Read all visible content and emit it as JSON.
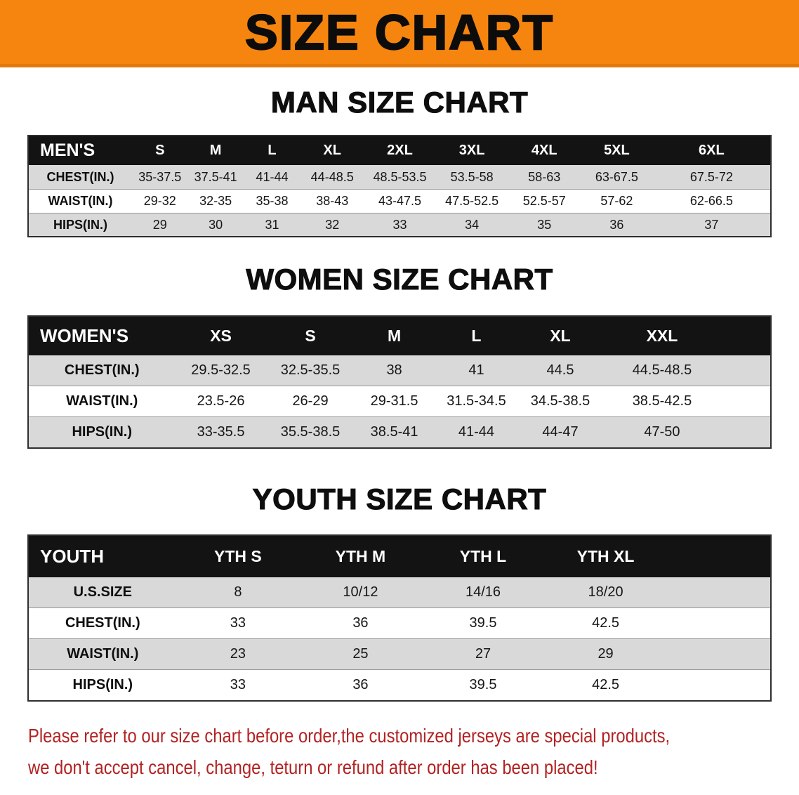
{
  "banner": {
    "title": "SIZE CHART"
  },
  "sections": [
    {
      "heading": "MAN SIZE CHART",
      "table": {
        "header": [
          "MEN'S",
          "S",
          "M",
          "L",
          "XL",
          "2XL",
          "3XL",
          "4XL",
          "5XL",
          "6XL"
        ],
        "rows": [
          [
            "CHEST(IN.)",
            "35-37.5",
            "37.5-41",
            "41-44",
            "44-48.5",
            "48.5-53.5",
            "53.5-58",
            "58-63",
            "63-67.5",
            "67.5-72"
          ],
          [
            "WAIST(IN.)",
            "29-32",
            "32-35",
            "35-38",
            "38-43",
            "43-47.5",
            "47.5-52.5",
            "52.5-57",
            "57-62",
            "62-66.5"
          ],
          [
            "HIPS(IN.)",
            "29",
            "30",
            "31",
            "32",
            "33",
            "34",
            "35",
            "36",
            "37"
          ]
        ]
      }
    },
    {
      "heading": "WOMEN SIZE CHART",
      "table": {
        "header": [
          "WOMEN'S",
          "XS",
          "S",
          "M",
          "L",
          "XL",
          "XXL"
        ],
        "rows": [
          [
            "CHEST(IN.)",
            "29.5-32.5",
            "32.5-35.5",
            "38",
            "41",
            "44.5",
            "44.5-48.5"
          ],
          [
            "WAIST(IN.)",
            "23.5-26",
            "26-29",
            "29-31.5",
            "31.5-34.5",
            "34.5-38.5",
            "38.5-42.5"
          ],
          [
            "HIPS(IN.)",
            "33-35.5",
            "35.5-38.5",
            "38.5-41",
            "41-44",
            "44-47",
            "47-50"
          ]
        ]
      }
    },
    {
      "heading": "YOUTH SIZE CHART",
      "table": {
        "header": [
          "YOUTH",
          "YTH S",
          "YTH M",
          "YTH L",
          "YTH XL"
        ],
        "rows": [
          [
            "U.S.SIZE",
            "8",
            "10/12",
            "14/16",
            "18/20"
          ],
          [
            "CHEST(IN.)",
            "33",
            "36",
            "39.5",
            "42.5"
          ],
          [
            "WAIST(IN.)",
            "23",
            "25",
            "27",
            "29"
          ],
          [
            "HIPS(IN.)",
            "33",
            "36",
            "39.5",
            "42.5"
          ]
        ]
      }
    }
  ],
  "disclaimer": {
    "line1": "Please refer to our size chart before order,the customized jerseys are special products,",
    "line2": "we don't accept cancel, change, teturn or refund after order has been placed!"
  },
  "colors": {
    "banner_bg": "#f5850f",
    "table_header_bg": "#131313",
    "row_alt_bg": "#d9d9d9",
    "disclaimer_text": "#b22222"
  }
}
